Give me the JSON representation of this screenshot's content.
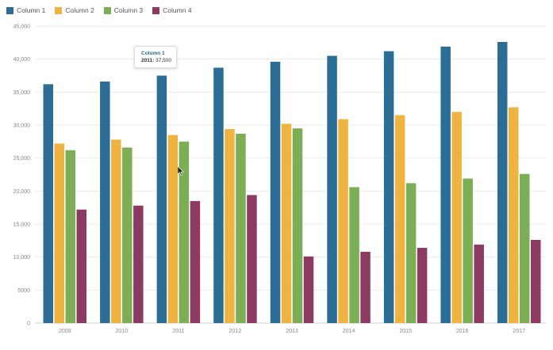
{
  "chart_data": {
    "type": "bar",
    "categories": [
      "2009",
      "2010",
      "2011",
      "2012",
      "2013",
      "2014",
      "2015",
      "2016",
      "2017"
    ],
    "series": [
      {
        "name": "Column 1",
        "color": "#2b6d94",
        "values": [
          36200,
          36600,
          37500,
          38700,
          39600,
          40500,
          41200,
          41900,
          42600
        ]
      },
      {
        "name": "Column 2",
        "color": "#efb33f",
        "values": [
          27200,
          27800,
          28500,
          29400,
          30200,
          30900,
          31500,
          32000,
          32700
        ]
      },
      {
        "name": "Column 3",
        "color": "#7caf55",
        "values": [
          26200,
          26600,
          27500,
          28700,
          29500,
          20600,
          21200,
          21900,
          22600
        ]
      },
      {
        "name": "Column 4",
        "color": "#8d3a63",
        "values": [
          17200,
          17800,
          18500,
          19400,
          10100,
          10800,
          11400,
          11900,
          12600
        ]
      }
    ],
    "ylim": [
      0,
      45000
    ],
    "yticks": [
      "0",
      "5000",
      "10,000",
      "15,000",
      "20,000",
      "25,000",
      "30,000",
      "35,000",
      "40,000",
      "45,000"
    ],
    "ytick_values": [
      0,
      5000,
      10000,
      15000,
      20000,
      25000,
      30000,
      35000,
      40000,
      45000
    ],
    "grid": true,
    "legend_position": "top-left"
  },
  "tooltip": {
    "title": "Column 1",
    "key": "2011:",
    "value": "37,500"
  }
}
